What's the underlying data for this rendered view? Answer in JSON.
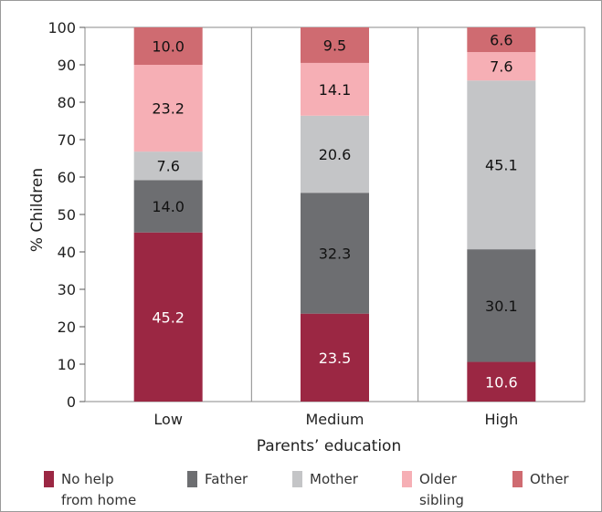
{
  "chart_data": {
    "type": "bar",
    "stacked": true,
    "title": "",
    "xlabel": "Parents’ education",
    "ylabel": "% Children",
    "ylim": [
      0,
      100
    ],
    "yticks": [
      "0",
      "10",
      "20",
      "30",
      "40",
      "50",
      "60",
      "70",
      "80",
      "90",
      "100"
    ],
    "categories": [
      "Low",
      "Medium",
      "High"
    ],
    "grid": "vertical category separators",
    "legend_position": "bottom",
    "series": [
      {
        "name": "No help from home",
        "legend_lines": [
          "No help",
          "from home"
        ],
        "color": "#9b2743",
        "label_color": "#ffffff",
        "values": [
          45.2,
          23.5,
          10.6
        ],
        "labels": [
          "45.2",
          "23.5",
          "10.6"
        ]
      },
      {
        "name": "Father",
        "legend_lines": [
          "Father"
        ],
        "color": "#6d6e71",
        "label_color": "#111111",
        "values": [
          14.0,
          32.3,
          30.1
        ],
        "labels": [
          "14.0",
          "32.3",
          "30.1"
        ]
      },
      {
        "name": "Mother",
        "legend_lines": [
          "Mother"
        ],
        "color": "#c4c5c7",
        "label_color": "#111111",
        "values": [
          7.6,
          20.6,
          45.1
        ],
        "labels": [
          "7.6",
          "20.6",
          "45.1"
        ]
      },
      {
        "name": "Older sibling",
        "legend_lines": [
          "Older",
          "sibling"
        ],
        "color": "#f6afb5",
        "label_color": "#111111",
        "values": [
          23.2,
          14.1,
          7.6
        ],
        "labels": [
          "23.2",
          "14.1",
          "7.6"
        ]
      },
      {
        "name": "Other",
        "legend_lines": [
          "Other"
        ],
        "color": "#cf6b71",
        "label_color": "#111111",
        "values": [
          10.0,
          9.5,
          6.6
        ],
        "labels": [
          "10.0",
          "9.5",
          "6.6"
        ]
      }
    ]
  }
}
